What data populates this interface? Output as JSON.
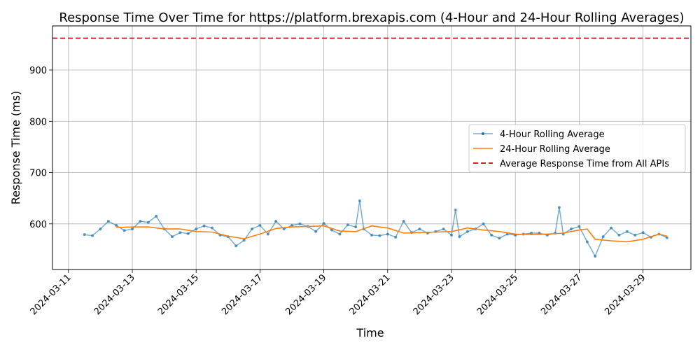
{
  "chart_data": {
    "type": "line",
    "title": "Response Time Over Time for https://platform.brexapis.com (4-Hour and 24-Hour Rolling Averages)",
    "xlabel": "Time",
    "ylabel": "Response Time (ms)",
    "xlim": [
      "2024-03-10T12:00",
      "2024-03-30T12:00"
    ],
    "ylim": [
      511,
      986
    ],
    "grid": true,
    "legend_position": "center-right",
    "x_ticks": [
      "2024-03-11",
      "2024-03-13",
      "2024-03-15",
      "2024-03-17",
      "2024-03-19",
      "2024-03-21",
      "2024-03-23",
      "2024-03-25",
      "2024-03-27",
      "2024-03-29"
    ],
    "y_ticks": [
      600,
      700,
      800,
      900
    ],
    "series": [
      {
        "name": "4-Hour Rolling Average",
        "color": "#1f77b4",
        "x": [
          "2024-03-11T12:00",
          "2024-03-11T18:00",
          "2024-03-12T00:00",
          "2024-03-12T06:00",
          "2024-03-12T12:00",
          "2024-03-12T18:00",
          "2024-03-13T00:00",
          "2024-03-13T06:00",
          "2024-03-13T12:00",
          "2024-03-13T18:00",
          "2024-03-14T00:00",
          "2024-03-14T06:00",
          "2024-03-14T12:00",
          "2024-03-14T18:00",
          "2024-03-15T00:00",
          "2024-03-15T06:00",
          "2024-03-15T12:00",
          "2024-03-15T18:00",
          "2024-03-16T00:00",
          "2024-03-16T06:00",
          "2024-03-16T12:00",
          "2024-03-16T18:00",
          "2024-03-17T00:00",
          "2024-03-17T06:00",
          "2024-03-17T12:00",
          "2024-03-17T18:00",
          "2024-03-18T00:00",
          "2024-03-18T06:00",
          "2024-03-18T12:00",
          "2024-03-18T18:00",
          "2024-03-19T00:00",
          "2024-03-19T06:00",
          "2024-03-19T12:00",
          "2024-03-19T18:00",
          "2024-03-20T00:00",
          "2024-03-20T03:00",
          "2024-03-20T06:00",
          "2024-03-20T12:00",
          "2024-03-20T18:00",
          "2024-03-21T00:00",
          "2024-03-21T06:00",
          "2024-03-21T12:00",
          "2024-03-21T18:00",
          "2024-03-22T00:00",
          "2024-03-22T06:00",
          "2024-03-22T12:00",
          "2024-03-22T18:00",
          "2024-03-23T00:00",
          "2024-03-23T03:00",
          "2024-03-23T06:00",
          "2024-03-23T12:00",
          "2024-03-23T18:00",
          "2024-03-24T00:00",
          "2024-03-24T06:00",
          "2024-03-24T12:00",
          "2024-03-24T18:00",
          "2024-03-25T00:00",
          "2024-03-25T06:00",
          "2024-03-25T12:00",
          "2024-03-25T18:00",
          "2024-03-26T00:00",
          "2024-03-26T06:00",
          "2024-03-26T09:00",
          "2024-03-26T12:00",
          "2024-03-26T18:00",
          "2024-03-27T00:00",
          "2024-03-27T06:00",
          "2024-03-27T12:00",
          "2024-03-27T18:00",
          "2024-03-28T00:00",
          "2024-03-28T06:00",
          "2024-03-28T12:00",
          "2024-03-28T18:00",
          "2024-03-29T00:00",
          "2024-03-29T06:00",
          "2024-03-29T12:00",
          "2024-03-29T18:00"
        ],
        "values": [
          579,
          577,
          590,
          605,
          597,
          587,
          590,
          605,
          603,
          615,
          590,
          575,
          583,
          581,
          590,
          596,
          592,
          578,
          575,
          557,
          568,
          590,
          597,
          580,
          605,
          590,
          597,
          600,
          595,
          585,
          601,
          588,
          580,
          598,
          594,
          645,
          590,
          578,
          577,
          580,
          574,
          605,
          583,
          590,
          582,
          585,
          590,
          578,
          627,
          575,
          585,
          590,
          600,
          578,
          572,
          580,
          578,
          580,
          582,
          582,
          578,
          582,
          632,
          580,
          590,
          595,
          565,
          537,
          575,
          592,
          578,
          585,
          578,
          583,
          574,
          580,
          573
        ]
      },
      {
        "name": "24-Hour Rolling Average",
        "color": "#ff7f0e",
        "x": [
          "2024-03-12T12:00",
          "2024-03-13T00:00",
          "2024-03-13T12:00",
          "2024-03-14T00:00",
          "2024-03-14T12:00",
          "2024-03-15T00:00",
          "2024-03-15T12:00",
          "2024-03-16T00:00",
          "2024-03-16T12:00",
          "2024-03-17T00:00",
          "2024-03-17T12:00",
          "2024-03-18T00:00",
          "2024-03-18T12:00",
          "2024-03-19T00:00",
          "2024-03-19T12:00",
          "2024-03-20T00:00",
          "2024-03-20T12:00",
          "2024-03-21T00:00",
          "2024-03-21T12:00",
          "2024-03-22T00:00",
          "2024-03-22T12:00",
          "2024-03-23T00:00",
          "2024-03-23T12:00",
          "2024-03-24T00:00",
          "2024-03-24T12:00",
          "2024-03-25T00:00",
          "2024-03-25T12:00",
          "2024-03-26T00:00",
          "2024-03-26T12:00",
          "2024-03-27T00:00",
          "2024-03-27T06:00",
          "2024-03-27T12:00",
          "2024-03-28T00:00",
          "2024-03-28T12:00",
          "2024-03-29T00:00",
          "2024-03-29T12:00",
          "2024-03-29T18:00"
        ],
        "values": [
          593,
          594,
          594,
          590,
          590,
          585,
          584,
          576,
          571,
          580,
          591,
          594,
          595,
          596,
          586,
          585,
          596,
          592,
          582,
          583,
          584,
          585,
          592,
          588,
          585,
          580,
          579,
          580,
          582,
          588,
          590,
          570,
          567,
          565,
          570,
          580,
          576
        ]
      }
    ],
    "reference_lines": [
      {
        "name": "Average Response Time from All APIs",
        "y": 962,
        "color": "#d62728",
        "style": "dashed"
      }
    ]
  }
}
